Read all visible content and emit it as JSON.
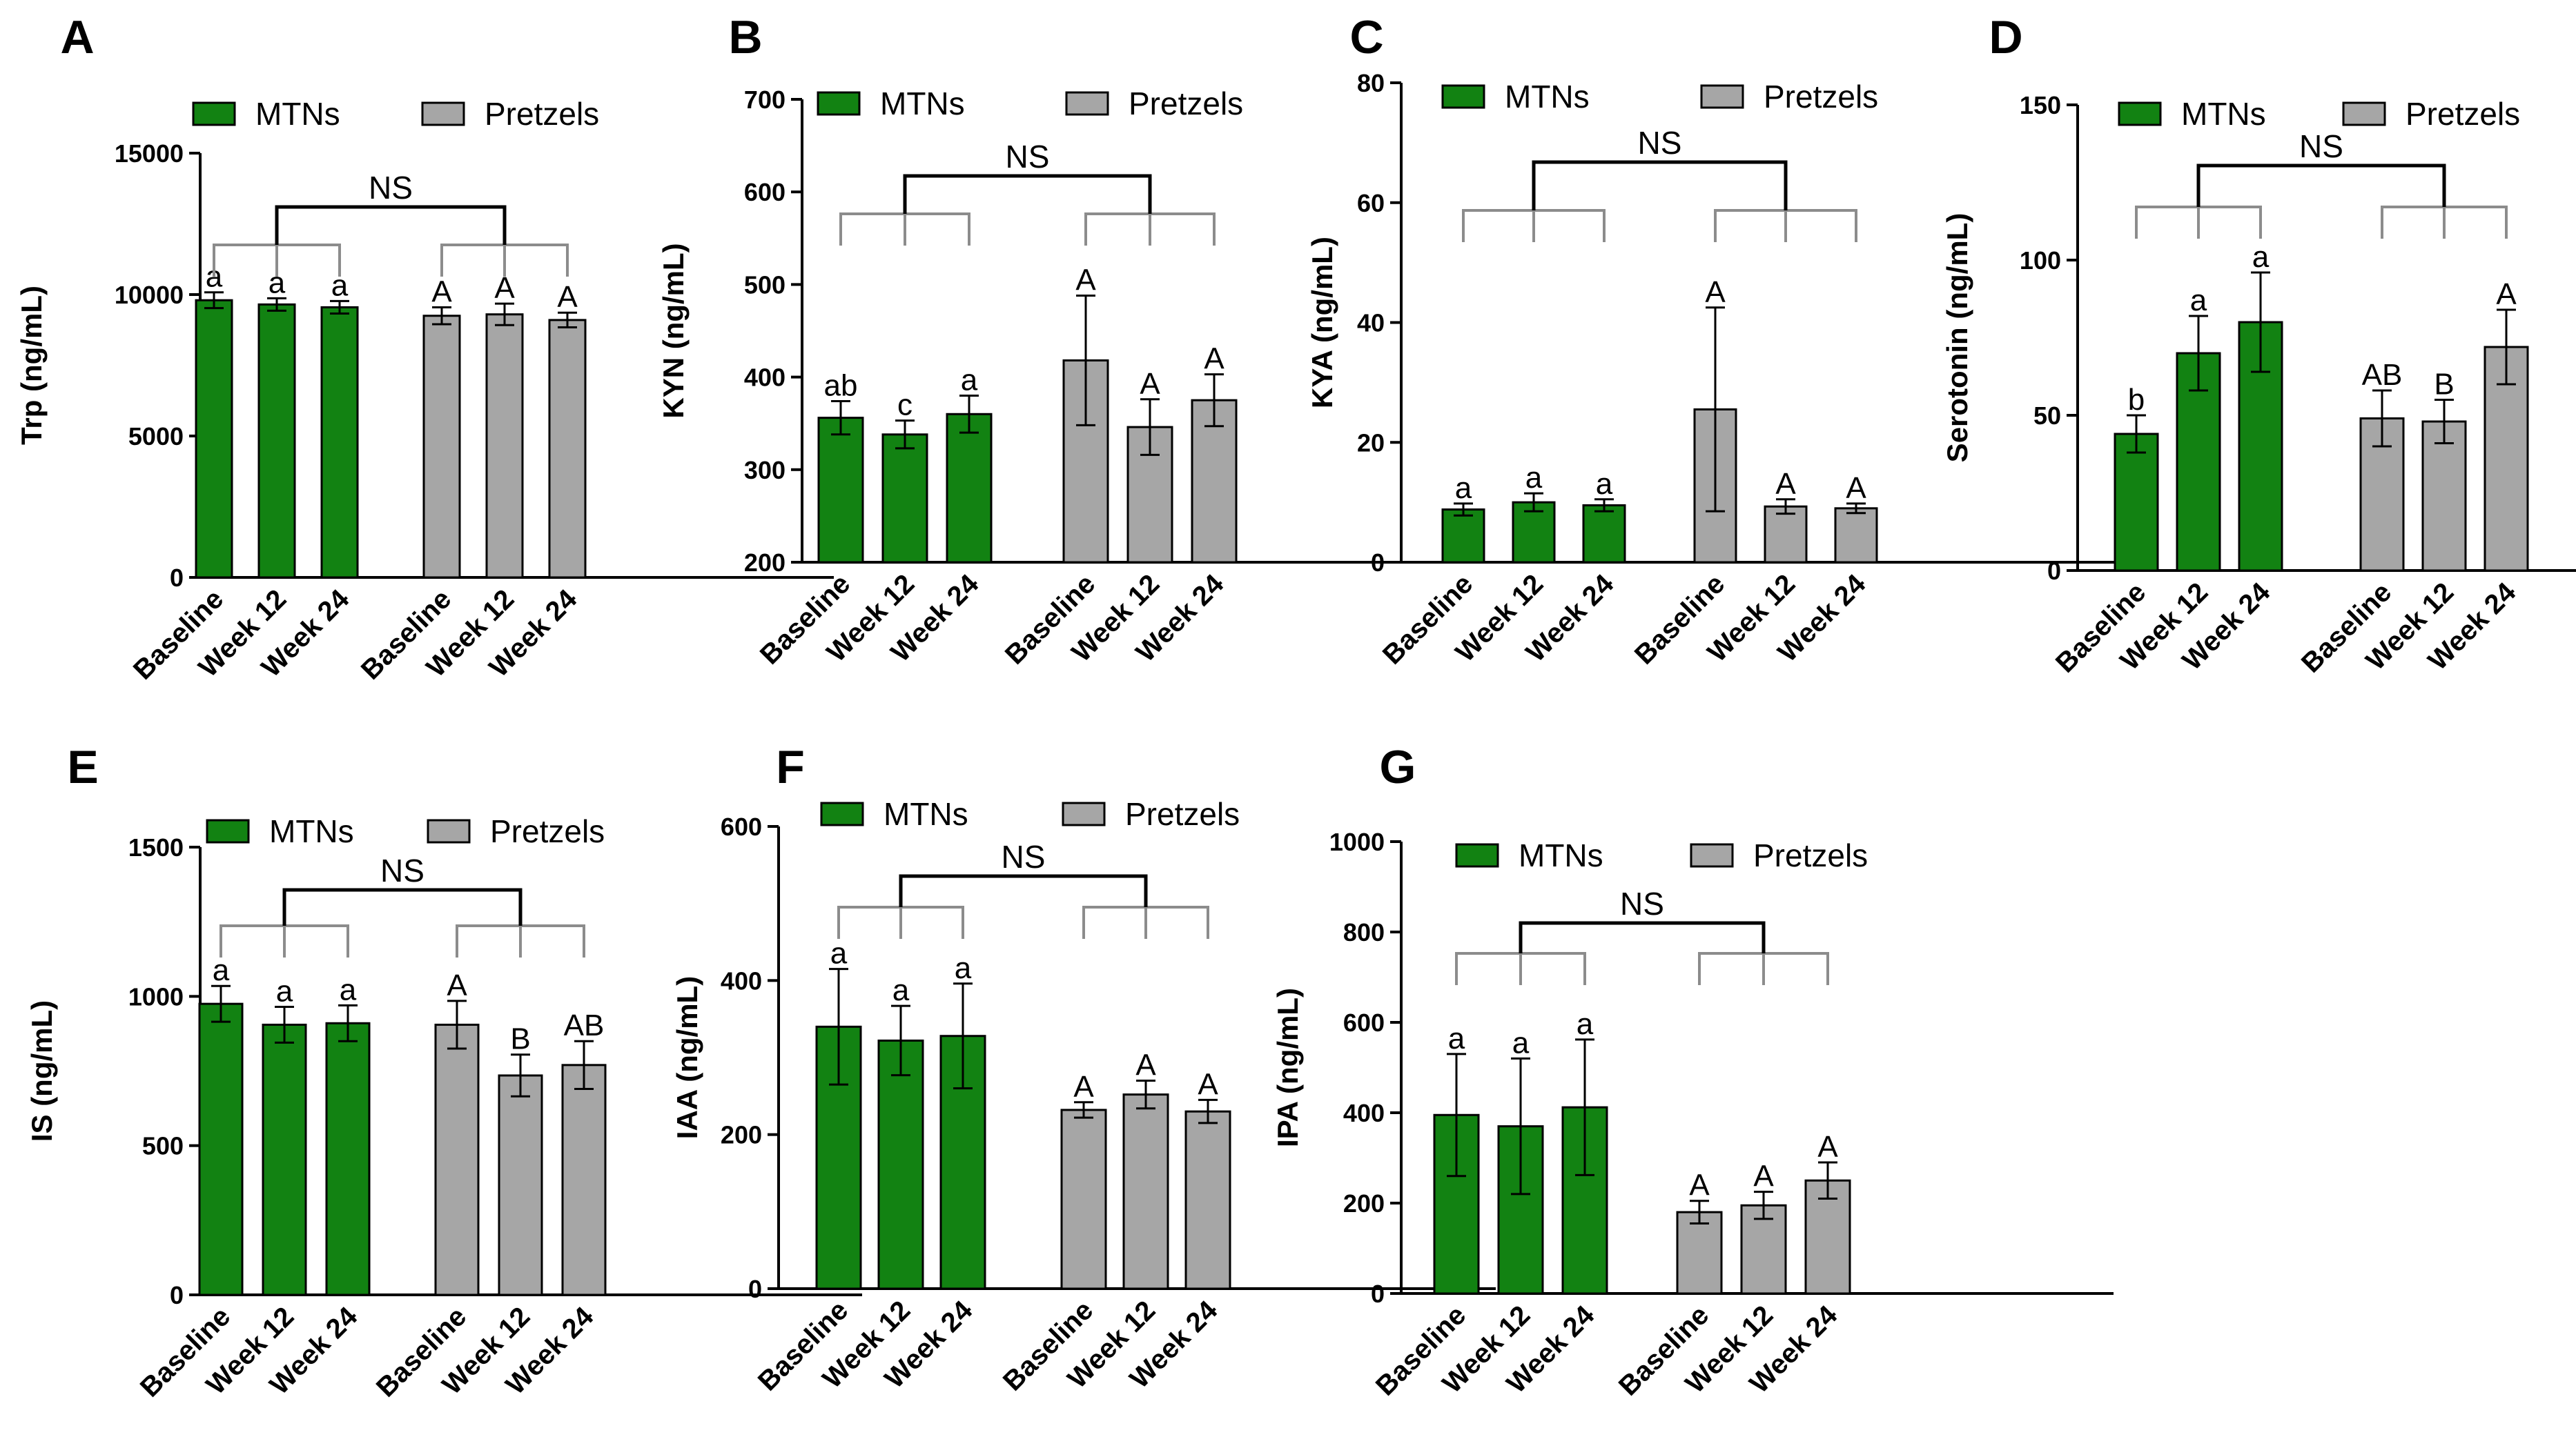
{
  "colors": {
    "mtns": "#128212",
    "pretzels": "#a6a6a6",
    "bracket_gray": "#8c8c8c",
    "axis": "#000000"
  },
  "chart_data": [
    {
      "type": "bar",
      "panel": "A",
      "ylabel": "Trp (ng/mL)",
      "ylim": [
        0,
        15000
      ],
      "yticks": [
        "0",
        "5000",
        "10000",
        "15000"
      ],
      "ytick_values": [
        0,
        5000,
        10000,
        15000
      ],
      "categories": [
        "Baseline",
        "Week 12",
        "Week 24"
      ],
      "legend": [
        "MTNs",
        "Pretzels"
      ],
      "overall": "NS",
      "series": [
        {
          "name": "MTNs",
          "values": [
            9800,
            9650,
            9550
          ],
          "errors": [
            280,
            220,
            220
          ],
          "labels": [
            "a",
            "a",
            "a"
          ]
        },
        {
          "name": "Pretzels",
          "values": [
            9250,
            9300,
            9100
          ],
          "errors": [
            300,
            380,
            260
          ],
          "labels": [
            "A",
            "A",
            "A"
          ]
        }
      ]
    },
    {
      "type": "bar",
      "panel": "B",
      "ylabel": "KYN (ng/mL)",
      "ylim": [
        200,
        700
      ],
      "yticks": [
        "200",
        "300",
        "400",
        "500",
        "600",
        "700"
      ],
      "ytick_values": [
        200,
        300,
        400,
        500,
        600,
        700
      ],
      "categories": [
        "Baseline",
        "Week 12",
        "Week 24"
      ],
      "legend": [
        "MTNs",
        "Pretzels"
      ],
      "overall": "NS",
      "series": [
        {
          "name": "MTNs",
          "values": [
            356,
            338,
            360
          ],
          "errors": [
            18,
            15,
            20
          ],
          "labels": [
            "ab",
            "c",
            "a"
          ]
        },
        {
          "name": "Pretzels",
          "values": [
            418,
            346,
            375
          ],
          "errors": [
            70,
            30,
            28
          ],
          "labels": [
            "A",
            "A",
            "A"
          ]
        }
      ]
    },
    {
      "type": "bar",
      "panel": "C",
      "ylabel": "KYA (ng/mL)",
      "ylim": [
        0,
        80
      ],
      "yticks": [
        "0",
        "20",
        "40",
        "60",
        "80"
      ],
      "ytick_values": [
        0,
        20,
        40,
        60,
        80
      ],
      "categories": [
        "Baseline",
        "Week 12",
        "Week 24"
      ],
      "legend": [
        "MTNs",
        "Pretzels"
      ],
      "overall": "NS",
      "series": [
        {
          "name": "MTNs",
          "values": [
            8.8,
            10,
            9.5
          ],
          "errors": [
            1,
            1.5,
            1
          ],
          "labels": [
            "a",
            "a",
            "a"
          ]
        },
        {
          "name": "Pretzels",
          "values": [
            25.5,
            9.3,
            9
          ],
          "errors": [
            17,
            1.2,
            0.8
          ],
          "labels": [
            "A",
            "A",
            "A"
          ]
        }
      ]
    },
    {
      "type": "bar",
      "panel": "D",
      "ylabel": "Serotonin (ng/mL)",
      "ylim": [
        0,
        150
      ],
      "yticks": [
        "0",
        "50",
        "100",
        "150"
      ],
      "ytick_values": [
        0,
        50,
        100,
        150
      ],
      "categories": [
        "Baseline",
        "Week 12",
        "Week 24"
      ],
      "legend": [
        "MTNs",
        "Pretzels"
      ],
      "overall": "NS",
      "series": [
        {
          "name": "MTNs",
          "values": [
            44,
            70,
            80
          ],
          "errors": [
            6,
            12,
            16
          ],
          "labels": [
            "b",
            "a",
            "a"
          ]
        },
        {
          "name": "Pretzels",
          "values": [
            49,
            48,
            72
          ],
          "errors": [
            9,
            7,
            12
          ],
          "labels": [
            "AB",
            "B",
            "A"
          ]
        }
      ]
    },
    {
      "type": "bar",
      "panel": "E",
      "ylabel": "IS (ng/mL)",
      "ylim": [
        0,
        1500
      ],
      "yticks": [
        "0",
        "500",
        "1000",
        "1500"
      ],
      "ytick_values": [
        0,
        500,
        1000,
        1500
      ],
      "categories": [
        "Baseline",
        "Week 12",
        "Week 24"
      ],
      "legend": [
        "MTNs",
        "Pretzels"
      ],
      "overall": "NS",
      "series": [
        {
          "name": "MTNs",
          "values": [
            975,
            905,
            910
          ],
          "errors": [
            60,
            60,
            60
          ],
          "labels": [
            "a",
            "a",
            "a"
          ]
        },
        {
          "name": "Pretzels",
          "values": [
            905,
            735,
            770
          ],
          "errors": [
            80,
            70,
            80
          ],
          "labels": [
            "A",
            "B",
            "AB"
          ]
        }
      ]
    },
    {
      "type": "bar",
      "panel": "F",
      "ylabel": "IAA (ng/mL)",
      "ylim": [
        0,
        600
      ],
      "yticks": [
        "0",
        "200",
        "400",
        "600"
      ],
      "ytick_values": [
        0,
        200,
        400,
        600
      ],
      "categories": [
        "Baseline",
        "Week 12",
        "Week 24"
      ],
      "legend": [
        "MTNs",
        "Pretzels"
      ],
      "overall": "NS",
      "series": [
        {
          "name": "MTNs",
          "values": [
            340,
            322,
            328
          ],
          "errors": [
            75,
            45,
            68
          ],
          "labels": [
            "a",
            "a",
            "a"
          ]
        },
        {
          "name": "Pretzels",
          "values": [
            232,
            252,
            230
          ],
          "errors": [
            10,
            18,
            15
          ],
          "labels": [
            "A",
            "A",
            "A"
          ]
        }
      ]
    },
    {
      "type": "bar",
      "panel": "G",
      "ylabel": "IPA (ng/mL)",
      "ylim": [
        0,
        1000
      ],
      "yticks": [
        "0",
        "200",
        "400",
        "600",
        "800",
        "1000"
      ],
      "ytick_values": [
        0,
        200,
        400,
        600,
        800,
        1000
      ],
      "categories": [
        "Baseline",
        "Week 12",
        "Week 24"
      ],
      "legend": [
        "MTNs",
        "Pretzels"
      ],
      "overall": "NS",
      "series": [
        {
          "name": "MTNs",
          "values": [
            395,
            370,
            412
          ],
          "errors": [
            135,
            150,
            150
          ],
          "labels": [
            "a",
            "a",
            "a"
          ]
        },
        {
          "name": "Pretzels",
          "values": [
            180,
            195,
            250
          ],
          "errors": [
            25,
            30,
            40
          ],
          "labels": [
            "A",
            "A",
            "A"
          ]
        }
      ]
    }
  ]
}
